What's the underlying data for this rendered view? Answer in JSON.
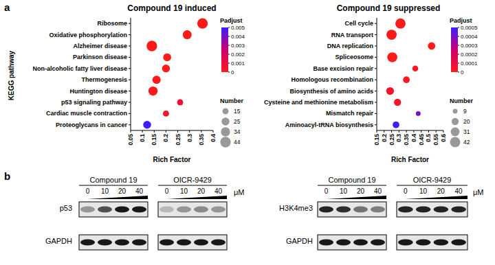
{
  "chart_data": [
    {
      "type": "scatter",
      "orientation": "horizontal",
      "title": "Compound 19 induced",
      "x_label": "Rich Factor",
      "y_label": "KEGG pathway",
      "categories": [
        "Ribosome",
        "Oxidative phosphorylation",
        "Alzheimer disease",
        "Parkinson disease",
        "Non-alcoholic fatty liver disease",
        "Thermogenesis",
        "Huntington disease",
        "p53 signaling pathway",
        "Cardiac muscle contraction",
        "Proteoglycans in cancer"
      ],
      "values": [
        0.355,
        0.29,
        0.14,
        0.205,
        0.2,
        0.16,
        0.145,
        0.26,
        0.2,
        0.12
      ],
      "sizes": [
        44,
        32,
        44,
        25,
        25,
        27,
        34,
        15,
        15,
        25
      ],
      "padj": [
        0,
        0,
        0,
        0,
        0,
        0,
        0,
        0.0008,
        0.0005,
        0.005
      ],
      "xlim": [
        0.05,
        0.4
      ],
      "xticks": [
        0.05,
        0.1,
        0.15,
        0.2,
        0.25,
        0.3,
        0.35,
        0.4
      ],
      "colorbar_label": "Padjust",
      "colorbar_lim": [
        0,
        0.005
      ],
      "colorbar_ticks": [
        0,
        0.001,
        0.002,
        0.003,
        0.004,
        0.005
      ],
      "size_label": "Number",
      "size_legend": [
        15,
        25,
        34,
        44
      ]
    },
    {
      "type": "scatter",
      "orientation": "horizontal",
      "title": "Compound 19 suppressed",
      "x_label": "Rich Factor",
      "categories": [
        "Cell cycle",
        "RNA transport",
        "DNA replication",
        "Spliceosome",
        "Base excision repair",
        "Homologous recombination",
        "Biosynthesis of amino acids",
        "Cysteine and methionine metabolism",
        "Mismatch repair",
        "Aminoacyl-tRNA biosynthesis"
      ],
      "values": [
        0.31,
        0.25,
        0.52,
        0.255,
        0.41,
        0.35,
        0.24,
        0.29,
        0.43,
        0.28
      ],
      "sizes": [
        42,
        42,
        22,
        40,
        14,
        18,
        24,
        20,
        9,
        18
      ],
      "padj": [
        0,
        0,
        0,
        0,
        3e-05,
        2e-05,
        5e-05,
        4e-05,
        0.0004,
        0.0005
      ],
      "xlim": [
        0.15,
        0.6
      ],
      "xticks": [
        0.15,
        0.2,
        0.25,
        0.3,
        0.35,
        0.4,
        0.45,
        0.5,
        0.55,
        0.6
      ],
      "colorbar_label": "Padjust",
      "colorbar_lim": [
        0,
        0.0005
      ],
      "colorbar_ticks": [
        0,
        0.0001,
        0.0002,
        0.0003,
        0.0004,
        0.0005
      ],
      "size_label": "Number",
      "size_legend": [
        9,
        20,
        31,
        42
      ]
    }
  ],
  "panel_labels": [
    "a",
    "b"
  ],
  "blots": [
    {
      "target": "p53",
      "loading": "GAPDH",
      "unit": "μM",
      "groups": [
        {
          "name": "Compound 19",
          "doses": [
            0,
            10,
            20,
            40
          ],
          "target_intensity": [
            0.35,
            0.65,
            0.9,
            0.9
          ],
          "loading_intensity": [
            0.9,
            0.9,
            0.9,
            0.9
          ]
        },
        {
          "name": "OICR-9429",
          "doses": [
            0,
            10,
            20,
            40
          ],
          "target_intensity": [
            0.2,
            0.35,
            0.4,
            0.35
          ],
          "loading_intensity": [
            0.9,
            0.9,
            0.9,
            0.9
          ]
        }
      ]
    },
    {
      "target": "H3K4me3",
      "loading": "GAPDH",
      "unit": "μM",
      "groups": [
        {
          "name": "Compound 19",
          "doses": [
            0,
            10,
            20,
            40
          ],
          "target_intensity": [
            0.85,
            0.8,
            0.5,
            0.45
          ],
          "loading_intensity": [
            0.9,
            0.9,
            0.9,
            0.9
          ]
        },
        {
          "name": "OICR-9429",
          "doses": [
            0,
            10,
            20,
            40
          ],
          "target_intensity": [
            0.85,
            0.85,
            0.85,
            0.85
          ],
          "loading_intensity": [
            0.9,
            0.9,
            0.9,
            0.9
          ]
        }
      ]
    }
  ]
}
